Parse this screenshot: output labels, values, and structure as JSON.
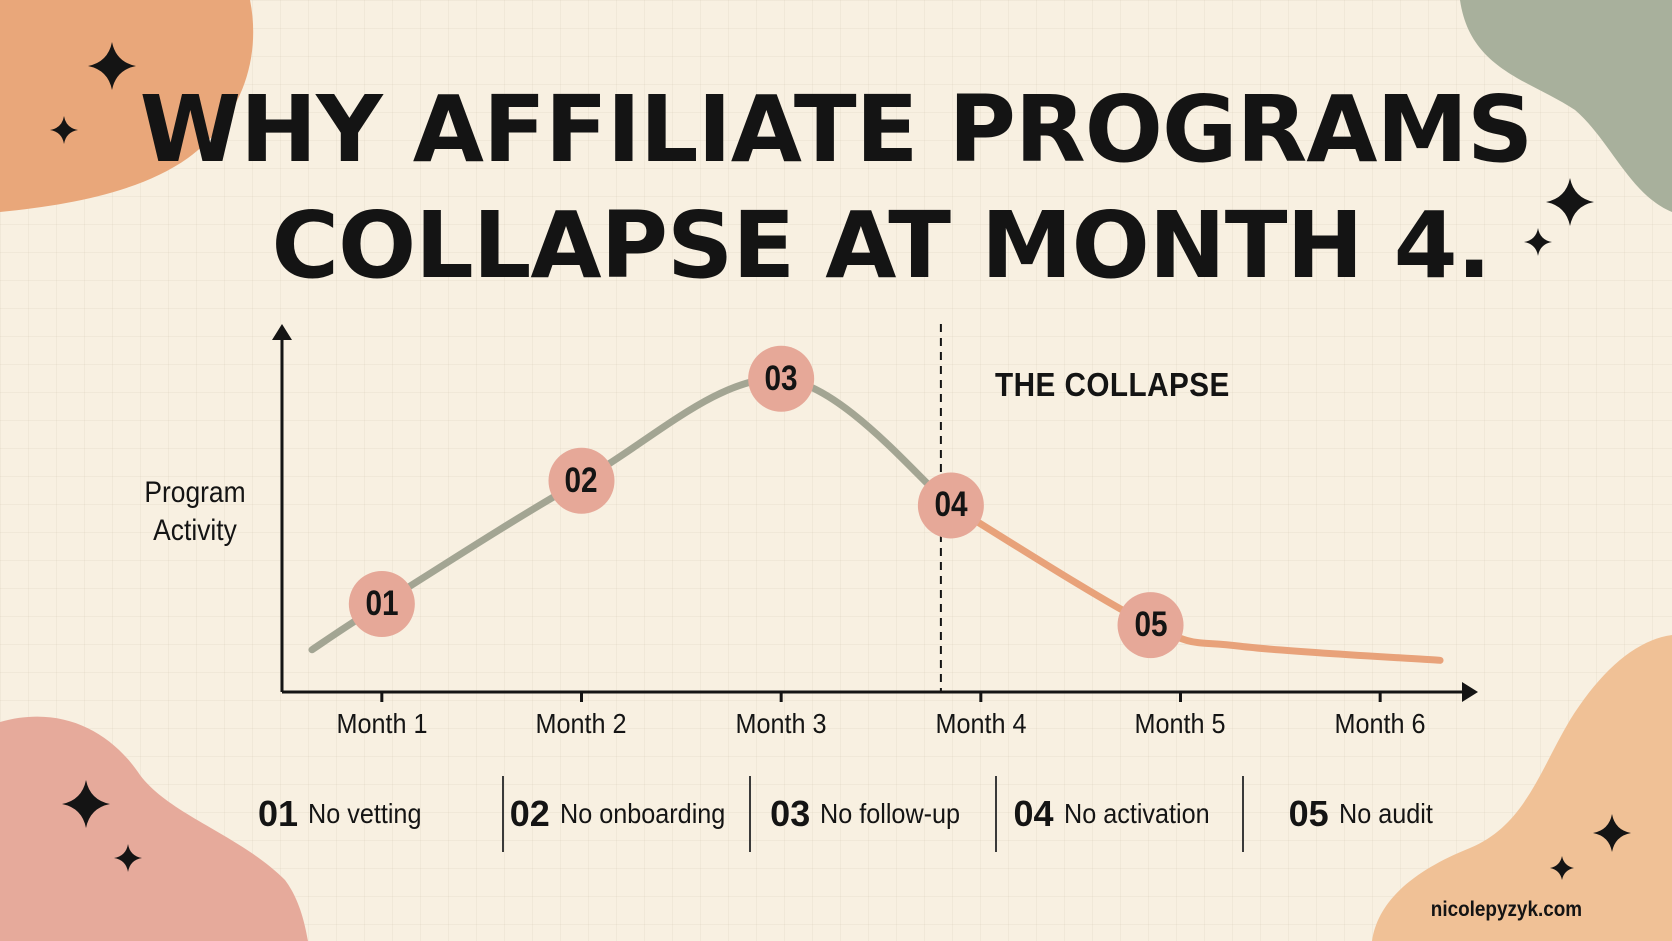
{
  "title": {
    "line1": "WHY AFFILIATE PROGRAMS",
    "line2": "COLLAPSE AT MONTH 4."
  },
  "chart_data": {
    "type": "line",
    "ylabel": {
      "line1": "Program",
      "line2": "Activity"
    },
    "xlabel": "",
    "categories": [
      "Month 1",
      "Month 2",
      "Month 3",
      "Month 4",
      "Month 5",
      "Month 6"
    ],
    "x_range": [
      0.5,
      6.45
    ],
    "y_range": [
      0,
      10
    ],
    "grid": false,
    "legend": "none",
    "series": [
      {
        "x": [
          0.65,
          1.0,
          2.0,
          3.0,
          3.85,
          4.85,
          5.3,
          6.3
        ],
        "y": [
          1.2,
          2.5,
          6.0,
          8.9,
          5.3,
          1.9,
          1.3,
          0.9
        ],
        "color_before": "#a3a593",
        "color_after": "#e8a27a"
      }
    ],
    "points": [
      {
        "label": "01",
        "x": 1.0,
        "y": 2.5
      },
      {
        "label": "02",
        "x": 2.0,
        "y": 6.0
      },
      {
        "label": "03",
        "x": 3.0,
        "y": 8.9
      },
      {
        "label": "04",
        "x": 3.85,
        "y": 5.3
      },
      {
        "label": "05",
        "x": 4.85,
        "y": 1.9
      }
    ],
    "annotation": {
      "x": 3.8,
      "text": "THE COLLAPSE"
    }
  },
  "reasons": [
    {
      "num": "01",
      "text": "No vetting"
    },
    {
      "num": "02",
      "text": "No onboarding"
    },
    {
      "num": "03",
      "text": "No follow-up"
    },
    {
      "num": "04",
      "text": "No activation"
    },
    {
      "num": "05",
      "text": "No audit"
    }
  ],
  "credit": "nicolepyzyk.com",
  "colors": {
    "background": "#f8f0e1",
    "marker": "#e6a898",
    "blob_orange": "#e9a77a",
    "blob_sage": "#a8b09c",
    "blob_pink": "#e6aa9b",
    "blob_peach": "#f0c196",
    "ink": "#141414"
  }
}
